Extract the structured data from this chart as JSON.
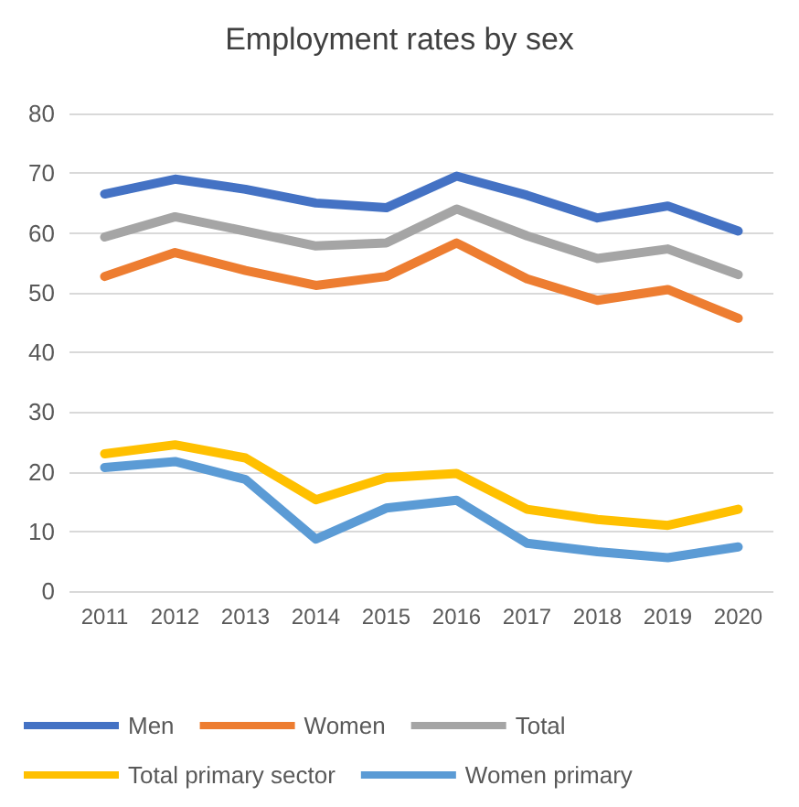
{
  "chart_data": {
    "type": "line",
    "title": "Employment rates by sex",
    "categories": [
      "2011",
      "2012",
      "2013",
      "2014",
      "2015",
      "2016",
      "2017",
      "2018",
      "2019",
      "2020"
    ],
    "series": [
      {
        "name": "Men",
        "color": "#4472c4",
        "values": [
          66.5,
          69,
          67.3,
          65,
          64.2,
          69.5,
          66.3,
          62.5,
          64.5,
          60.3
        ]
      },
      {
        "name": "Women",
        "color": "#ed7d31",
        "values": [
          52.7,
          56.7,
          53.7,
          51.2,
          52.7,
          58.3,
          52.3,
          48.7,
          50.5,
          45.7
        ]
      },
      {
        "name": "Total",
        "color": "#a5a5a5",
        "values": [
          59.3,
          62.7,
          60.3,
          57.8,
          58.3,
          64,
          59.5,
          55.7,
          57.3,
          53
        ]
      },
      {
        "name": "Total primary sector",
        "color": "#ffc000",
        "values": [
          23,
          24.5,
          22.3,
          15.3,
          19,
          19.7,
          13.7,
          12,
          11,
          13.7
        ]
      },
      {
        "name": "Women primary",
        "color": "#5b9bd5",
        "values": [
          20.7,
          21.7,
          18.7,
          8.7,
          13.9,
          15.2,
          8,
          6.6,
          5.6,
          7.4
        ]
      }
    ],
    "ylim": [
      0,
      80
    ],
    "yticks": [
      0,
      10,
      20,
      30,
      40,
      50,
      60,
      70,
      80
    ],
    "grid": "y",
    "legend": "bottom",
    "marker": "none",
    "line_style": "solid"
  }
}
